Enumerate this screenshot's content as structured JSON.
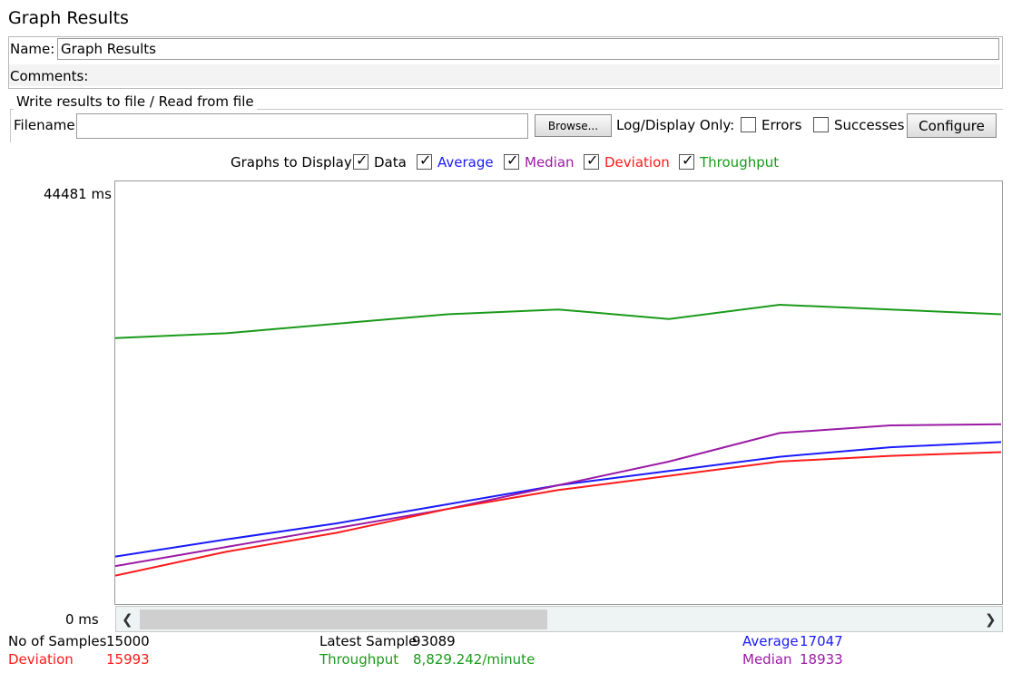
{
  "panel": {
    "title": "Graph Results"
  },
  "name_field": {
    "label": "Name:",
    "value": "Graph Results"
  },
  "comments_field": {
    "label": "Comments:",
    "value": ""
  },
  "file_section": {
    "legend": "Write results to file / Read from file",
    "filename_label": "Filename",
    "filename_value": "",
    "browse_label": "Browse...",
    "log_label": "Log/Display Only:",
    "errors_label": "Errors",
    "successes_label": "Successes",
    "configure_label": "Configure"
  },
  "graphs_to_display": {
    "label": "Graphs to Display",
    "options": [
      {
        "label": "Data",
        "checked": true,
        "color": "#000000"
      },
      {
        "label": "Average",
        "checked": true,
        "color": "#1a1aff"
      },
      {
        "label": "Median",
        "checked": true,
        "color": "#9b1aa5"
      },
      {
        "label": "Deviation",
        "checked": true,
        "color": "#ff1a1a"
      },
      {
        "label": "Throughput",
        "checked": true,
        "color": "#1a9a1a"
      }
    ]
  },
  "y_axis": {
    "max_label": "44481  ms",
    "min_label": "0 ms"
  },
  "stats": {
    "samples_label": "No of Samples",
    "samples_value": "15000",
    "latest_label": "Latest Sample",
    "latest_value": "93089",
    "average_label": "Average",
    "average_value": "17047",
    "deviation_label": "Deviation",
    "deviation_value": "15993",
    "throughput_label": "Throughput",
    "throughput_value": "8,829.242/minute",
    "median_label": "Median",
    "median_value": "18933"
  },
  "chart_data": {
    "type": "line",
    "ylim": [
      0,
      44481
    ],
    "series": [
      {
        "name": "Average",
        "color": "#1a1aff",
        "values": [
          5000,
          6800,
          8500,
          10500,
          12500,
          14000,
          15500,
          16500,
          17047
        ]
      },
      {
        "name": "Median",
        "color": "#9b1aa5",
        "values": [
          4000,
          6000,
          8000,
          10000,
          12500,
          15000,
          18000,
          18800,
          18933
        ]
      },
      {
        "name": "Deviation",
        "color": "#ff1a1a",
        "values": [
          3000,
          5500,
          7500,
          10000,
          12000,
          13500,
          15000,
          15600,
          15993
        ]
      },
      {
        "name": "Throughput",
        "color": "#1a9a1a",
        "values": [
          28000,
          28500,
          29500,
          30500,
          31000,
          30000,
          31500,
          31000,
          30500
        ]
      }
    ]
  }
}
